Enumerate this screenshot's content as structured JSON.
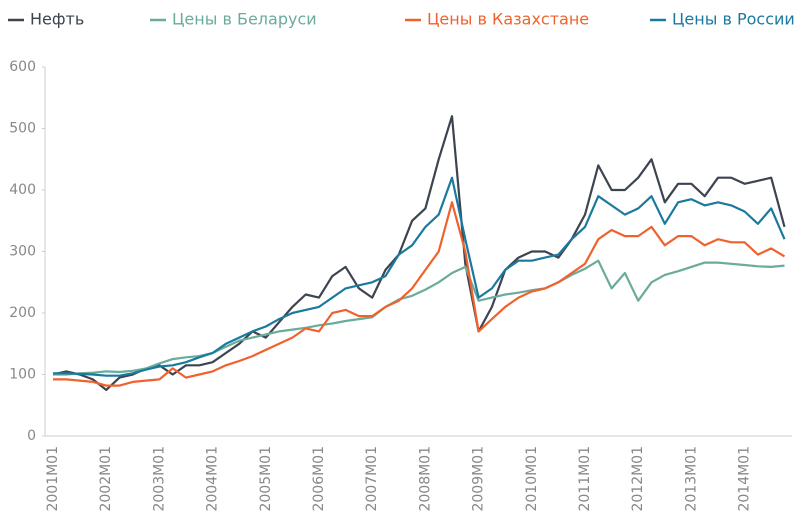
{
  "chart_data": {
    "type": "line",
    "categories": [
      "2001M01",
      null,
      null,
      null,
      "2002M01",
      null,
      null,
      null,
      "2003M01",
      null,
      null,
      null,
      "2004M01",
      null,
      null,
      null,
      "2005M01",
      null,
      null,
      null,
      "2006M01",
      null,
      null,
      null,
      "2007M01",
      null,
      null,
      null,
      "2008M01",
      null,
      null,
      null,
      "2009M01",
      null,
      null,
      null,
      "2010M01",
      null,
      null,
      null,
      "2011M01",
      null,
      null,
      null,
      "2012M01",
      null,
      null,
      null,
      "2013M01",
      null,
      null,
      null,
      "2014M01",
      null,
      null,
      null
    ],
    "series": [
      {
        "name": "Нефть",
        "color": "#3d4450",
        "values": [
          100,
          105,
          100,
          92,
          75,
          95,
          100,
          110,
          115,
          100,
          115,
          115,
          120,
          135,
          150,
          170,
          160,
          185,
          210,
          230,
          225,
          260,
          275,
          240,
          225,
          270,
          295,
          350,
          370,
          450,
          520,
          280,
          170,
          210,
          270,
          290,
          300,
          300,
          290,
          320,
          360,
          440,
          400,
          400,
          420,
          450,
          380,
          410,
          410,
          390,
          420,
          420,
          410,
          415,
          420,
          340
        ]
      },
      {
        "name": "Цены в Беларуси",
        "color": "#6aab9c",
        "values": [
          100,
          100,
          102,
          103,
          105,
          104,
          106,
          110,
          118,
          125,
          128,
          130,
          135,
          145,
          155,
          160,
          165,
          170,
          173,
          176,
          180,
          183,
          187,
          190,
          193,
          210,
          222,
          228,
          238,
          250,
          265,
          275,
          220,
          225,
          230,
          233,
          237,
          240,
          250,
          262,
          272,
          285,
          240,
          265,
          220,
          250,
          262,
          268,
          275,
          282,
          282,
          280,
          278,
          276,
          275,
          277
        ]
      },
      {
        "name": "Цены в Казахстане",
        "color": "#f0622d",
        "values": [
          92,
          92,
          90,
          88,
          82,
          82,
          88,
          90,
          92,
          110,
          95,
          100,
          105,
          115,
          122,
          130,
          140,
          150,
          160,
          175,
          170,
          200,
          205,
          195,
          195,
          210,
          220,
          240,
          270,
          300,
          380,
          300,
          170,
          190,
          210,
          225,
          235,
          240,
          250,
          265,
          280,
          320,
          335,
          325,
          325,
          340,
          310,
          325,
          325,
          310,
          320,
          315,
          315,
          295,
          305,
          292
        ]
      },
      {
        "name": "Цены в России",
        "color": "#1a7a9e",
        "values": [
          102,
          102,
          101,
          100,
          98,
          98,
          102,
          108,
          113,
          115,
          120,
          128,
          135,
          150,
          160,
          170,
          178,
          190,
          200,
          205,
          210,
          225,
          240,
          245,
          250,
          260,
          295,
          310,
          340,
          360,
          420,
          320,
          225,
          240,
          270,
          285,
          285,
          290,
          295,
          320,
          340,
          390,
          375,
          360,
          370,
          390,
          345,
          380,
          385,
          375,
          380,
          375,
          365,
          345,
          370,
          320
        ]
      }
    ],
    "ylim": [
      0,
      600
    ],
    "yticks": [
      0,
      100,
      200,
      300,
      400,
      500,
      600
    ],
    "legend": "top"
  }
}
